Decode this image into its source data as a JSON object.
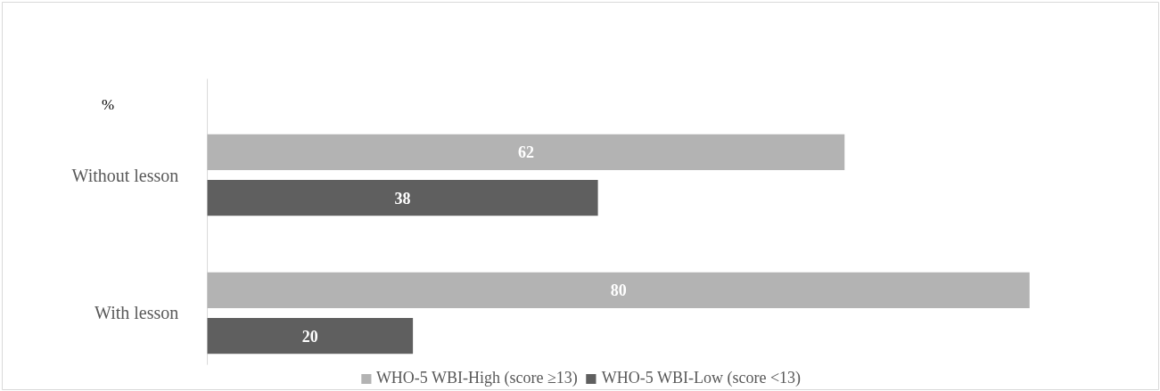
{
  "chart_data": {
    "type": "bar",
    "orientation": "horizontal",
    "categories": [
      "Without lesson",
      "With lesson"
    ],
    "series": [
      {
        "name": "WHO-5 WBI-High (score ≥13)",
        "color": "#b3b3b3",
        "values": [
          62,
          80
        ]
      },
      {
        "name": "WHO-5 WBI-Low (score <13)",
        "color": "#5f5f5f",
        "values": [
          38,
          20
        ]
      }
    ],
    "data_labels": true,
    "legend": "bottom",
    "grid": false,
    "annotations": [
      "%"
    ]
  }
}
